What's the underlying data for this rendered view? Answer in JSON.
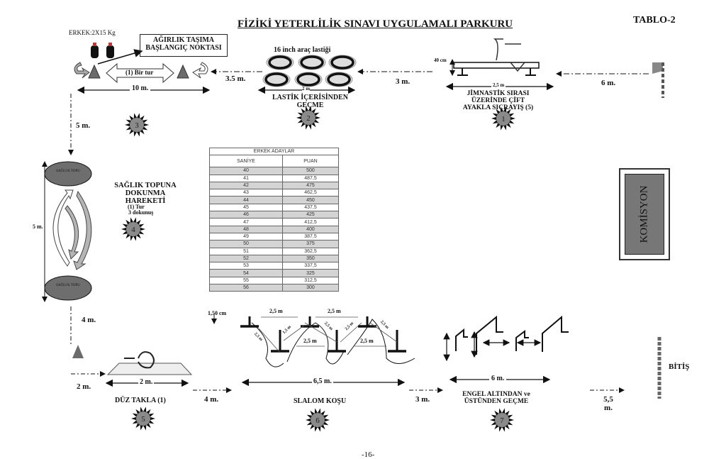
{
  "header": {
    "title": "FİZİKİ YETERLİLİK SINAVI UYGULAMALI PARKURU",
    "table_ref": "TABLO-2"
  },
  "station_weight": {
    "weight_label": "ERKEK:2X15 Kg",
    "box_line1": "AĞIRLIK TAŞIMA",
    "box_line2": "BAŞLANGIÇ NOKTASI",
    "lap_label": "(1) Bir tur",
    "distance": "10 m.",
    "number": "3"
  },
  "dist_weight_tires": "3.5 m.",
  "station_tires": {
    "top_label": "16 inch araç lastiği",
    "width": "2 m",
    "name_line1": "LASTİK İÇERİSİNDEN",
    "name_line2": "GEÇME",
    "number": "2"
  },
  "dist_tires_bench": "3 m.",
  "station_bench": {
    "height": "40 cm",
    "length": "2,5 m",
    "name_line1": "JİMNASTİK SIRASI",
    "name_line2": "ÜZERİNDE ÇİFT",
    "name_line3": "AYAKLA SIÇRAYIŞ (5)",
    "number": "1"
  },
  "dist_start_bench": "6 m.",
  "dist_weight_ball": "5 m.",
  "station_ball": {
    "ball_label_top": "SAĞLI K TOPU",
    "ball_label_bottom": "SAĞLI K TOPU",
    "distance": "5 m.",
    "name_line1": "SAĞLIK TOPUNA",
    "name_line2": "DOKUNMA",
    "name_line3": "HAREKETİ",
    "detail_line1": "(1)  Tur",
    "detail_line2": "3 dokunuş",
    "number": "4"
  },
  "score_table": {
    "title": "ERKEK  ADAYLAR",
    "headers": [
      "SANİYE",
      "PUAN"
    ],
    "rows": [
      [
        "40",
        "500"
      ],
      [
        "41",
        "487,5"
      ],
      [
        "42",
        "475"
      ],
      [
        "43",
        "462,5"
      ],
      [
        "44",
        "450"
      ],
      [
        "45",
        "437,5"
      ],
      [
        "46",
        "425"
      ],
      [
        "47",
        "412,5"
      ],
      [
        "48",
        "400"
      ],
      [
        "49",
        "387,5"
      ],
      [
        "50",
        "375"
      ],
      [
        "51",
        "362,5"
      ],
      [
        "52",
        "350"
      ],
      [
        "53",
        "337,5"
      ],
      [
        "54",
        "325"
      ],
      [
        "55",
        "312,5"
      ],
      [
        "56",
        "300"
      ]
    ]
  },
  "komisyon": "KOMİSYON",
  "dist_ball_roll": "4 m.",
  "dist_roll_in": "2 m.",
  "station_roll": {
    "length": "2 m.",
    "name": "DÜZ TAKLA  (1)",
    "number": "5"
  },
  "dist_roll_slalom": "4 m.",
  "station_slalom": {
    "height": "1,50 cm",
    "gap_labels": [
      "2,5 m",
      "2,5 m",
      "2,5 m",
      "2,5 m"
    ],
    "diag_labels": [
      "2,5 m",
      "1,5 m",
      "2,5 m",
      "2,5 m",
      "2,5 m"
    ],
    "length": "6,5 m.",
    "name": "SLALOM KOŞU",
    "number": "6"
  },
  "dist_slalom_hurdle": "3 m.",
  "station_hurdle": {
    "length": "6 m.",
    "name_line1": "ENGEL  ALTINDAN ve",
    "name_line2": "ÜSTÜNDEN GEÇME",
    "number": "7"
  },
  "dist_hurdle_finish": "5,5 m.",
  "finish": "BİTİŞ",
  "page_number": "-16-",
  "colors": {
    "star_fill": "#8a8a8a",
    "cone": "#6b6b6b",
    "ball": "#6e6e6e",
    "arrow_fill": "#b5b5b5"
  }
}
